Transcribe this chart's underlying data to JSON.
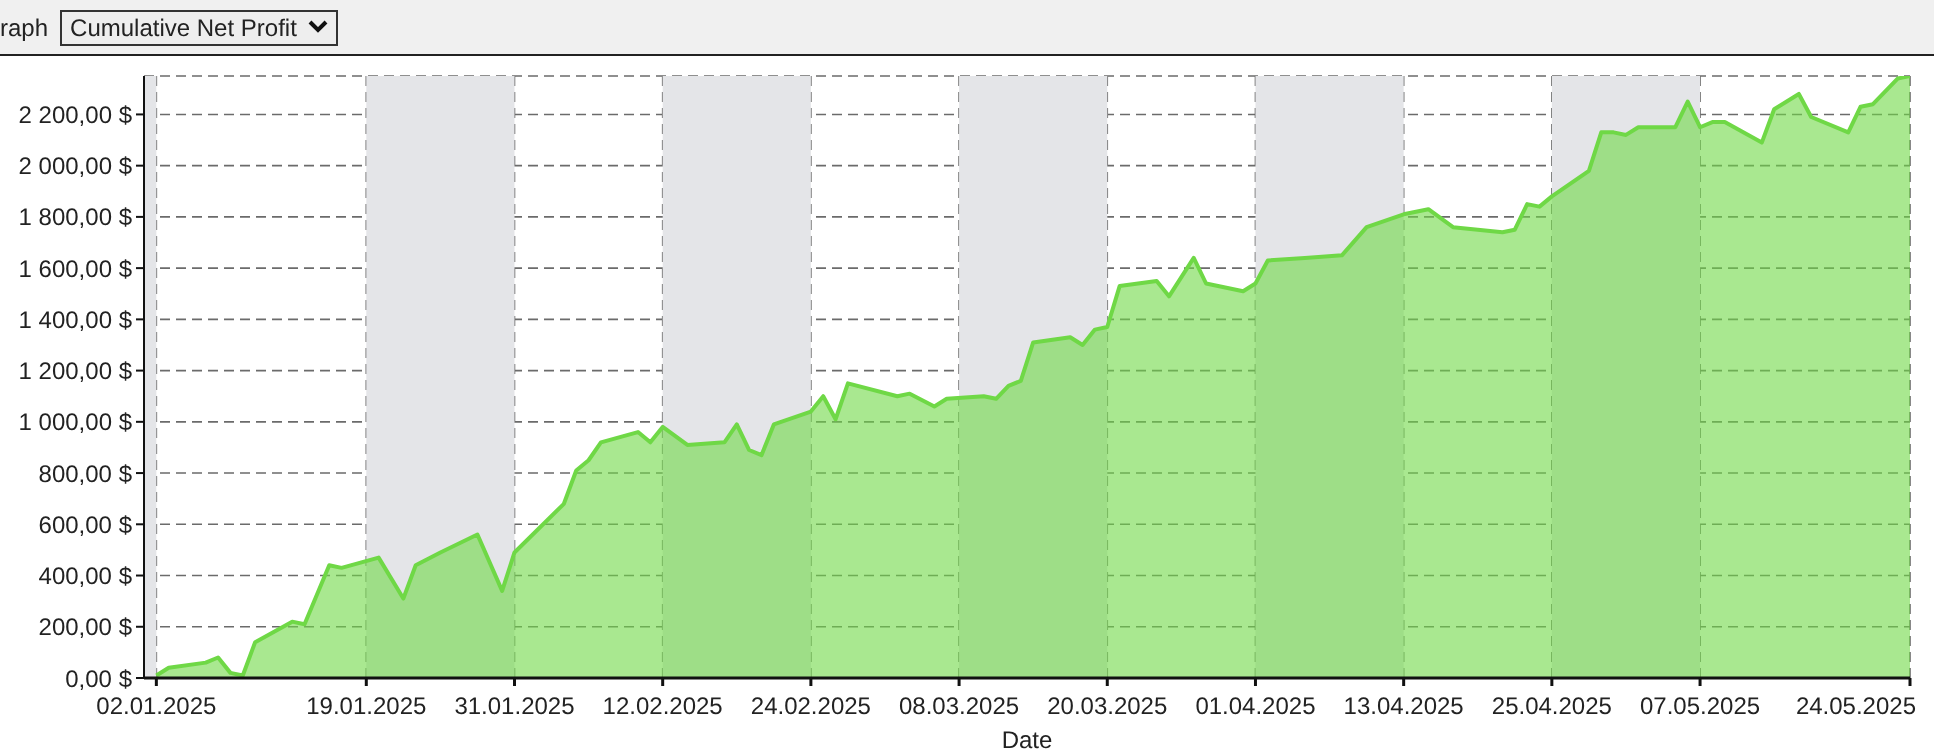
{
  "chart_data": {
    "type": "area",
    "title": "Cumulative Net Profit",
    "xlabel": "Date",
    "annotations": [
      "raph"
    ],
    "x": [
      "2025-01-02",
      "2025-01-03",
      "2025-01-06",
      "2025-01-07",
      "2025-01-08",
      "2025-01-09",
      "2025-01-10",
      "2025-01-13",
      "2025-01-14",
      "2025-01-16",
      "2025-01-17",
      "2025-01-20",
      "2025-01-22",
      "2025-01-23",
      "2025-01-25",
      "2025-01-28",
      "2025-01-30",
      "2025-01-31",
      "2025-02-04",
      "2025-02-05",
      "2025-02-06",
      "2025-02-07",
      "2025-02-10",
      "2025-02-11",
      "2025-02-12",
      "2025-02-14",
      "2025-02-17",
      "2025-02-18",
      "2025-02-19",
      "2025-02-20",
      "2025-02-21",
      "2025-02-24",
      "2025-02-25",
      "2025-02-26",
      "2025-02-27",
      "2025-03-03",
      "2025-03-04",
      "2025-03-06",
      "2025-03-07",
      "2025-03-10",
      "2025-03-11",
      "2025-03-12",
      "2025-03-13",
      "2025-03-14",
      "2025-03-17",
      "2025-03-18",
      "2025-03-19",
      "2025-03-20",
      "2025-03-21",
      "2025-03-24",
      "2025-03-25",
      "2025-03-27",
      "2025-03-28",
      "2025-03-31",
      "2025-04-01",
      "2025-04-02",
      "2025-04-05",
      "2025-04-08",
      "2025-04-10",
      "2025-04-13",
      "2025-04-15",
      "2025-04-17",
      "2025-04-21",
      "2025-04-22",
      "2025-04-23",
      "2025-04-24",
      "2025-04-25",
      "2025-04-28",
      "2025-04-29",
      "2025-04-30",
      "2025-05-01",
      "2025-05-02",
      "2025-05-05",
      "2025-05-06",
      "2025-05-07",
      "2025-05-08",
      "2025-05-09",
      "2025-05-12",
      "2025-05-13",
      "2025-05-15",
      "2025-05-16",
      "2025-05-19",
      "2025-05-20",
      "2025-05-21",
      "2025-05-23",
      "2025-05-24"
    ],
    "series": [
      {
        "color": "#6fd846",
        "values": [
          10,
          40,
          60,
          80,
          20,
          10,
          140,
          220,
          210,
          440,
          430,
          470,
          310,
          440,
          490,
          560,
          340,
          490,
          680,
          810,
          850,
          920,
          960,
          920,
          980,
          910,
          920,
          990,
          890,
          870,
          990,
          1040,
          1100,
          1010,
          1150,
          1100,
          1110,
          1060,
          1090,
          1100,
          1090,
          1140,
          1160,
          1310,
          1330,
          1300,
          1360,
          1370,
          1530,
          1550,
          1490,
          1640,
          1540,
          1510,
          1540,
          1630,
          1640,
          1650,
          1760,
          1810,
          1830,
          1760,
          1740,
          1750,
          1850,
          1840,
          1880,
          1980,
          2130,
          2130,
          2120,
          2150,
          2150,
          2250,
          2150,
          2170,
          2170,
          2090,
          2220,
          2280,
          2190,
          2130,
          2230,
          2240,
          2340,
          2350
        ]
      }
    ],
    "xlim": [
      "2025-01-01",
      "2025-05-24"
    ],
    "xticks": [
      {
        "value": "2025-01-02",
        "label": "02.01.2025"
      },
      {
        "value": "2025-01-19",
        "label": "19.01.2025"
      },
      {
        "value": "2025-01-31",
        "label": "31.01.2025"
      },
      {
        "value": "2025-02-12",
        "label": "12.02.2025"
      },
      {
        "value": "2025-02-24",
        "label": "24.02.2025"
      },
      {
        "value": "2025-03-08",
        "label": "08.03.2025"
      },
      {
        "value": "2025-03-20",
        "label": "20.03.2025"
      },
      {
        "value": "2025-04-01",
        "label": "01.04.2025"
      },
      {
        "value": "2025-04-13",
        "label": "13.04.2025"
      },
      {
        "value": "2025-04-25",
        "label": "25.04.2025"
      },
      {
        "value": "2025-05-07",
        "label": "07.05.2025"
      },
      {
        "value": "2025-05-24",
        "label": "24.05.2025"
      }
    ],
    "ylim": [
      0,
      2350
    ],
    "yticks": [
      {
        "value": 0,
        "label": "0,00 $"
      },
      {
        "value": 200,
        "label": "200,00 $"
      },
      {
        "value": 400,
        "label": "400,00 $"
      },
      {
        "value": 600,
        "label": "600,00 $"
      },
      {
        "value": 800,
        "label": "800,00 $"
      },
      {
        "value": 1000,
        "label": "1 000,00 $"
      },
      {
        "value": 1200,
        "label": "1 200,00 $"
      },
      {
        "value": 1400,
        "label": "1 400,00 $"
      },
      {
        "value": 1600,
        "label": "1 600,00 $"
      },
      {
        "value": 1800,
        "label": "1 800,00 $"
      },
      {
        "value": 2000,
        "label": "2 000,00 $"
      },
      {
        "value": 2200,
        "label": "2 200,00 $"
      }
    ],
    "bands": [
      {
        "axis": "x",
        "from": "2025-01-01",
        "to": "2025-01-02",
        "color": "#e4e5e8"
      },
      {
        "axis": "x",
        "from": "2025-01-19",
        "to": "2025-01-31",
        "color": "#e4e5e8"
      },
      {
        "axis": "x",
        "from": "2025-02-12",
        "to": "2025-02-24",
        "color": "#e4e5e8"
      },
      {
        "axis": "x",
        "from": "2025-03-08",
        "to": "2025-03-20",
        "color": "#e4e5e8"
      },
      {
        "axis": "x",
        "from": "2025-04-01",
        "to": "2025-04-13",
        "color": "#e4e5e8"
      },
      {
        "axis": "x",
        "from": "2025-04-25",
        "to": "2025-05-07",
        "color": "#e4e5e8"
      }
    ],
    "grid": true
  }
}
